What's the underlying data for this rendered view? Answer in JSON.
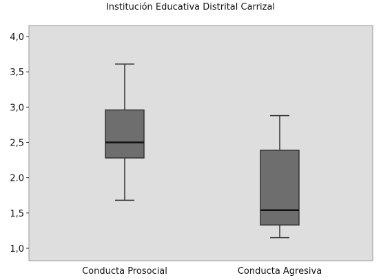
{
  "chart_data": {
    "type": "box",
    "title": "Institución Educativa Distrital Carrizal",
    "xlabel": "",
    "ylabel": "",
    "ylim": [
      1.0,
      4.0
    ],
    "yticks": [
      1.0,
      1.5,
      2.0,
      2.5,
      3.0,
      3.5,
      4.0
    ],
    "ytick_labels": [
      "1,0",
      "1,5",
      "2.0",
      "2,5",
      "3,0",
      "3,5",
      "4,0"
    ],
    "categories": [
      "Conducta Prosocial",
      "Conducta Agresiva"
    ],
    "boxes": [
      {
        "category": "Conducta Prosocial",
        "min": 1.68,
        "q1": 2.28,
        "median": 2.5,
        "q3": 2.96,
        "max": 3.61
      },
      {
        "category": "Conducta Agresiva",
        "min": 1.15,
        "q1": 1.33,
        "median": 1.54,
        "q3": 2.39,
        "max": 2.88
      }
    ],
    "grid": false,
    "colors": {
      "plot_background": "#dedede",
      "box_fill": "#6e6e6e",
      "line": "#333333"
    }
  }
}
